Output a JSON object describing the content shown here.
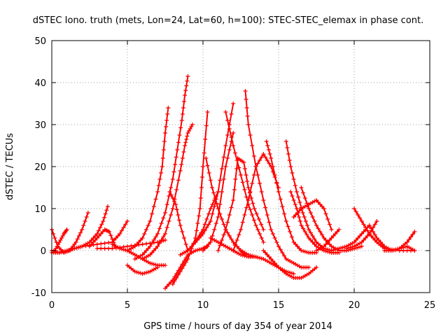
{
  "chart_data": {
    "type": "scatter",
    "title": "dSTEC Iono. truth (mets, Lon=24, Lat=60, h=100): STEC-STEC_elemax in phase cont.",
    "xlabel": "GPS time / hours of day 354 of year 2014",
    "ylabel": "dSTEC  / TECUs",
    "xlim": [
      0,
      25
    ],
    "ylim": [
      -10,
      50
    ],
    "xticks": [
      "0",
      "5",
      "10",
      "15",
      "20",
      "25"
    ],
    "yticks": [
      "-10",
      "0",
      "10",
      "20",
      "30",
      "40",
      "50"
    ],
    "grid": true,
    "legend": "none",
    "color": "#ff0000",
    "marker": "plus",
    "series": [
      {
        "x": [
          0.0,
          0.4,
          0.8,
          1.2,
          1.6,
          2.0,
          2.4
        ],
        "y": [
          5,
          1,
          -0.5,
          0,
          2,
          5,
          9
        ]
      },
      {
        "x": [
          0.0,
          0.5,
          1.0,
          1.5,
          2.0,
          2.5,
          3.0,
          3.4,
          3.7
        ],
        "y": [
          0,
          -0.5,
          0,
          0.5,
          1,
          2,
          4,
          7,
          10.5
        ]
      },
      {
        "x": [
          0.2,
          0.5,
          0.8,
          1.0
        ],
        "y": [
          0,
          2,
          4,
          5
        ]
      },
      {
        "x": [
          0.0,
          0.5,
          1.0,
          1.5,
          2.0,
          3.0,
          4.0,
          4.5,
          5.0
        ],
        "y": [
          -0.5,
          -0.5,
          0,
          0.5,
          1,
          1.5,
          2,
          4,
          7
        ]
      },
      {
        "x": [
          2.5,
          3.0,
          3.5,
          3.8,
          4.2
        ],
        "y": [
          1,
          3,
          5,
          4.5,
          1
        ]
      },
      {
        "x": [
          3.0,
          4.0,
          5.0,
          6.0,
          7.0,
          7.5
        ],
        "y": [
          0.5,
          0.5,
          1,
          1.5,
          2,
          2.5
        ]
      },
      {
        "x": [
          4.0,
          4.5,
          5.0,
          5.5,
          6.0,
          6.5,
          7.0,
          7.5
        ],
        "y": [
          1.5,
          0.5,
          0,
          -1,
          -2,
          -3,
          -3.5,
          -3.5
        ]
      },
      {
        "x": [
          5.0,
          5.5,
          6.0,
          6.5,
          7.0
        ],
        "y": [
          -3.5,
          -5,
          -5.5,
          -5,
          -4
        ]
      },
      {
        "x": [
          5.0,
          5.5,
          6.0,
          6.5,
          7.0,
          7.3,
          7.5,
          7.7
        ],
        "y": [
          0,
          1,
          3,
          7,
          14,
          20,
          28,
          34
        ]
      },
      {
        "x": [
          5.5,
          6.0,
          6.5,
          7.0,
          7.5,
          8.0,
          8.3,
          8.6,
          8.8,
          9.0
        ],
        "y": [
          -2,
          -1,
          1,
          4,
          9,
          17,
          24,
          31,
          37,
          41.5
        ]
      },
      {
        "x": [
          6.0,
          6.5,
          7.0,
          7.5,
          8.0,
          8.5,
          8.8,
          9.0,
          9.3
        ],
        "y": [
          -2,
          -1,
          1,
          4,
          10,
          19,
          25,
          28,
          30
        ]
      },
      {
        "x": [
          7.5,
          8.0,
          8.5,
          9.0,
          9.5,
          10.0,
          10.3
        ],
        "y": [
          -9,
          -7,
          -4,
          -1,
          0,
          0.5,
          1
        ]
      },
      {
        "x": [
          7.8,
          8.2,
          8.5,
          9.0
        ],
        "y": [
          14,
          11,
          6,
          0
        ]
      },
      {
        "x": [
          8.0,
          8.5,
          9.0,
          9.5,
          9.8,
          10.0,
          10.3
        ],
        "y": [
          -8,
          -5,
          -2,
          3,
          10,
          20,
          33
        ]
      },
      {
        "x": [
          8.5,
          9.0,
          9.5,
          10.0,
          10.5,
          11.0
        ],
        "y": [
          -1,
          0,
          2,
          5,
          10,
          14
        ]
      },
      {
        "x": [
          9.5,
          10.0,
          10.5,
          11.0,
          11.5,
          12.0
        ],
        "y": [
          2,
          4,
          7,
          14,
          25,
          35
        ]
      },
      {
        "x": [
          10.0,
          10.5,
          11.0,
          11.5,
          12.0
        ],
        "y": [
          0,
          2,
          8,
          20,
          28
        ]
      },
      {
        "x": [
          10.2,
          10.6,
          11.0,
          11.5,
          12.0,
          12.5,
          12.8
        ],
        "y": [
          22,
          15,
          10,
          5,
          2,
          0,
          -1
        ]
      },
      {
        "x": [
          10.5,
          11.0,
          11.5,
          12.0,
          12.5,
          13.0,
          13.5
        ],
        "y": [
          3,
          2,
          1,
          0,
          -1,
          -1.5,
          -1.5
        ]
      },
      {
        "x": [
          11.0,
          11.5,
          12.0,
          12.3,
          12.7,
          13.0,
          13.4,
          14.0
        ],
        "y": [
          0,
          5,
          12,
          22,
          21,
          15,
          10,
          5
        ]
      },
      {
        "x": [
          11.5,
          12.0,
          12.5,
          13.0,
          13.5,
          14.0
        ],
        "y": [
          33,
          25,
          18,
          11,
          6,
          2
        ]
      },
      {
        "x": [
          12.0,
          12.5,
          13.0,
          13.5,
          14.0,
          14.5,
          15.0
        ],
        "y": [
          0,
          5,
          12,
          20,
          23,
          20,
          15
        ]
      },
      {
        "x": [
          12.5,
          13.0,
          13.5,
          14.0,
          14.5,
          15.0,
          15.5,
          16.0
        ],
        "y": [
          0,
          -1,
          -1.5,
          -2,
          -3,
          -4,
          -5,
          -5.5
        ]
      },
      {
        "x": [
          12.8,
          13.0,
          13.5,
          14.0,
          14.5,
          15.0,
          15.5,
          16.0,
          16.5,
          17.0
        ],
        "y": [
          38,
          30,
          20,
          12,
          5,
          1,
          -2,
          -3,
          -4,
          -4
        ]
      },
      {
        "x": [
          14.0,
          14.5,
          15.0,
          15.5,
          16.0,
          16.5,
          17.0,
          17.5
        ],
        "y": [
          0,
          -2,
          -4,
          -5.5,
          -6.5,
          -6.5,
          -5.5,
          -4
        ]
      },
      {
        "x": [
          14.2,
          14.5,
          15.0,
          15.5,
          16.0,
          16.5,
          17.0,
          17.5
        ],
        "y": [
          26,
          22,
          14,
          7,
          2,
          0,
          -0.5,
          -0.5
        ]
      },
      {
        "x": [
          15.5,
          15.8,
          16.2,
          16.6,
          17.0,
          17.5,
          18.0,
          18.5
        ],
        "y": [
          26,
          20,
          14,
          9,
          5,
          2,
          0.5,
          0
        ]
      },
      {
        "x": [
          15.8,
          16.2,
          16.5,
          17.0,
          17.5,
          18.0,
          18.5,
          19.0
        ],
        "y": [
          14,
          10,
          6,
          3,
          1,
          0,
          -0.5,
          -0.5
        ]
      },
      {
        "x": [
          16.0,
          16.5,
          17.0,
          17.5,
          18.0,
          18.5
        ],
        "y": [
          8,
          10,
          11,
          12,
          10,
          5
        ]
      },
      {
        "x": [
          16.5,
          17.0,
          17.5,
          18.0,
          18.5,
          19.0,
          19.5,
          20.0,
          20.5
        ],
        "y": [
          15,
          10,
          6,
          3,
          1,
          0,
          0,
          0.5,
          1
        ]
      },
      {
        "x": [
          17.5,
          18.0,
          18.5,
          19.0
        ],
        "y": [
          0,
          1,
          3,
          5
        ]
      },
      {
        "x": [
          18.5,
          19.0,
          19.5,
          20.0,
          20.5,
          21.0
        ],
        "y": [
          0,
          0.5,
          1,
          2,
          4,
          6
        ]
      },
      {
        "x": [
          19.5,
          20.0,
          20.5,
          21.0,
          21.5
        ],
        "y": [
          0.5,
          1,
          2,
          4,
          7
        ]
      },
      {
        "x": [
          20.0,
          20.5,
          21.0,
          21.5,
          22.0,
          23.0,
          24.0
        ],
        "y": [
          10,
          7,
          4,
          2,
          0.5,
          0,
          0
        ]
      },
      {
        "x": [
          21.0,
          21.5,
          22.0,
          22.5,
          23.0,
          23.5,
          24.0
        ],
        "y": [
          6,
          3,
          1,
          0,
          0.5,
          2,
          4.5
        ]
      },
      {
        "x": [
          22.0,
          22.5,
          23.0,
          23.5,
          24.0
        ],
        "y": [
          0,
          0,
          0.5,
          1,
          0
        ]
      }
    ]
  }
}
